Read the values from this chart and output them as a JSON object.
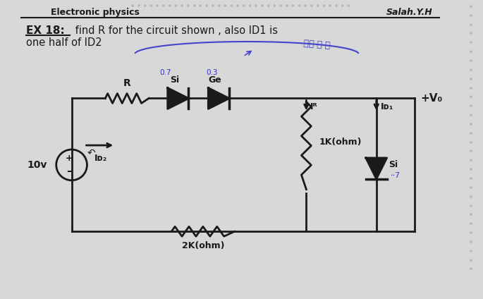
{
  "bg_color": "#d8d8d8",
  "page_bg": "#eeeeee",
  "title_left": "Electronic physics",
  "title_right": "Salah.Y.H",
  "ex_label": "EX 18:",
  "ex_text": " find R for the circuit shown , also ID1 is",
  "ex_text2": "one half of ID2",
  "line_color": "#1a1a1a",
  "annotation_color": "#3333cc",
  "resistor_label": "R",
  "diode1_label": "Si",
  "diode2_label": "Ge",
  "vo_label": "+V₀",
  "ir_label": "Iᴿ",
  "id1_label": "Iᴅ₁",
  "id2_label": "Iᴅ₂",
  "r1_label": "1K(ohm)",
  "r2_label": "2K(ohm)",
  "v_label": "10v",
  "si_label": "Si",
  "val_07": "0.7",
  "val_03": "0.3"
}
